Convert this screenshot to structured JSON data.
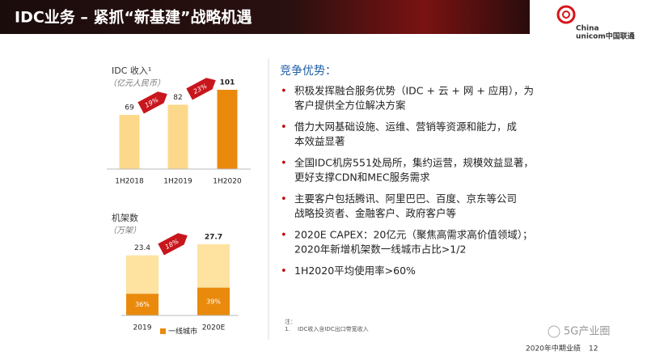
{
  "header": {
    "title": "IDC业务 – 紧抓“新基建”战略机遇",
    "logo": [
      "China",
      "unicom中国联通"
    ]
  },
  "chart_data": [
    {
      "type": "bar",
      "title": "IDC 收入¹",
      "subtitle": "（亿元人民币）",
      "categories": [
        "1H2018",
        "1H2019",
        "1H2020"
      ],
      "values": [
        69,
        82,
        101
      ],
      "colors": [
        "#fcd88b",
        "#fcd88b",
        "#ea8a0c"
      ],
      "growth_labels": [
        "19%",
        "23%"
      ]
    },
    {
      "type": "bar",
      "title": "机架数",
      "subtitle": "（万架）",
      "categories": [
        "2019",
        "2020E"
      ],
      "values": [
        23.4,
        27.7
      ],
      "colors": [
        "#fde2a0",
        "#fde2a0"
      ],
      "growth_labels": [
        "18%"
      ],
      "share": {
        "name": "一线城市",
        "color": "#ea8a0c",
        "values": [
          36,
          39
        ],
        "value_labels": [
          "36%",
          "39%"
        ]
      }
    }
  ],
  "advantages": {
    "heading": "竞争优势：",
    "bullets": [
      [
        "积极发挥融合服务优势（IDC + 云 + 网 + 应用），为",
        "客户提供全方位解决方案"
      ],
      [
        "借力大网基础设施、运维、营销等资源和能力，成",
        "本效益显著"
      ],
      [
        "全国IDC机房551处局所，集约运营，规模效益显著，",
        "更好支撑CDN和MEC服务需求"
      ],
      [
        "主要客户包括腾讯、阿里巴巴、百度、京东等公司",
        "战略投资者、金融客户、政府客户等"
      ],
      [
        "2020E CAPEX：20亿元（聚焦高需求高价值领域）；",
        "2020年新增机架数一线城市占比>1/2"
      ],
      [
        "1H2020平均使用率>60%"
      ]
    ]
  },
  "footnote": [
    "注：",
    "1.",
    "IDC收入含IDC出口带宽收入"
  ],
  "footer": {
    "text": "2020年中期业绩",
    "page": "12"
  },
  "watermark": "5G产业圈"
}
